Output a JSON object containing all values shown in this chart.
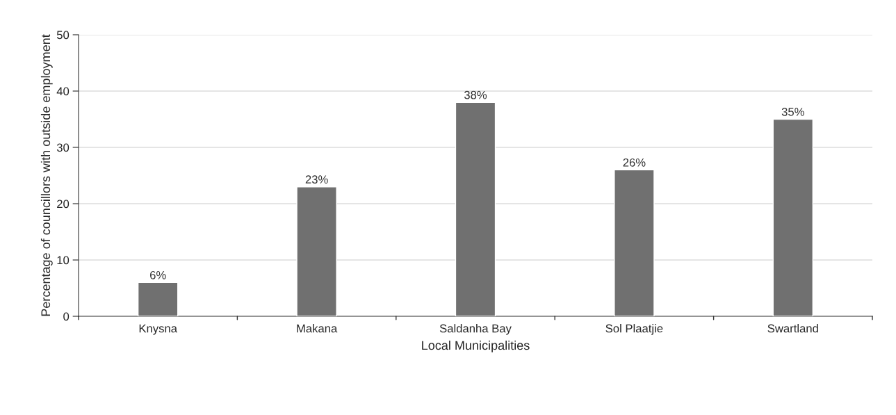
{
  "chart_data": {
    "type": "bar",
    "categories": [
      "Knysna",
      "Makana",
      "Saldanha Bay",
      "Sol Plaatjie",
      "Swartland"
    ],
    "values": [
      6,
      23,
      38,
      26,
      35
    ],
    "value_labels": [
      "6%",
      "23%",
      "38%",
      "26%",
      "35%"
    ],
    "color": "#707070",
    "xlabel": "Local Municipalities",
    "ylabel": "Percentage of councillors with outside employment",
    "ylim": [
      0,
      50
    ],
    "yticks": [
      0,
      10,
      20,
      30,
      40,
      50
    ],
    "grid": "y",
    "legend": false
  }
}
